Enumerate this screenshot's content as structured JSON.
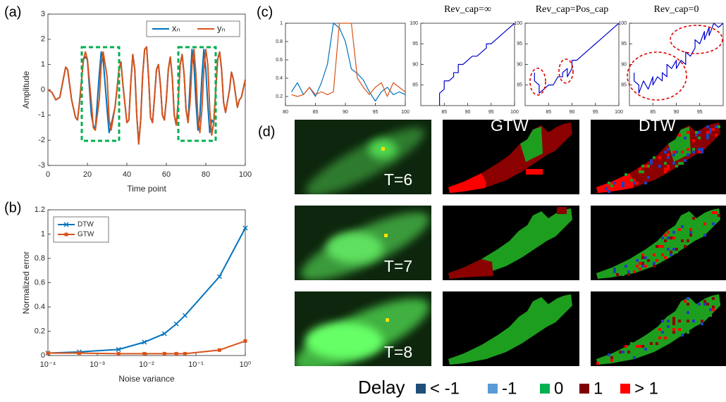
{
  "panel_labels": [
    "(a)",
    "(b)",
    "(c)",
    "(d)"
  ],
  "chart_data": [
    {
      "type": "line",
      "xlabel": "Time point",
      "ylabel": "Amplitude",
      "xlim": [
        0,
        100
      ],
      "xticks": [
        0,
        20,
        40,
        60,
        80,
        100
      ],
      "ylim": [
        -3,
        3
      ],
      "yticks": [
        -3,
        -2,
        -1,
        0,
        1,
        2,
        3
      ],
      "legend": "upper right",
      "x": [
        0,
        2,
        4,
        6,
        8,
        9,
        10,
        12,
        14,
        15,
        16,
        18,
        19,
        20,
        22,
        23,
        24,
        26,
        27,
        28,
        30,
        31,
        32,
        34,
        36,
        37,
        38,
        40,
        41,
        42,
        43,
        44,
        45,
        46,
        47,
        48,
        49,
        50,
        51,
        52,
        53,
        54,
        55,
        56,
        57,
        58,
        59,
        60,
        61,
        62,
        63,
        64,
        65,
        66,
        67,
        68,
        69,
        70,
        71,
        72,
        73,
        74,
        75,
        76,
        77,
        78,
        79,
        80,
        81,
        82,
        83,
        84,
        86,
        87,
        88,
        89,
        90,
        92,
        93,
        94,
        96,
        97,
        98,
        100
      ],
      "series": [
        {
          "name": "xₙ",
          "color": "#0072bd",
          "values": [
            0,
            -0.1,
            -0.4,
            -0.3,
            0.5,
            0.9,
            0.8,
            -0.4,
            -1.1,
            -1.2,
            -0.5,
            1.2,
            1.3,
            1.2,
            -1.0,
            -1.4,
            -1.6,
            0.6,
            1.5,
            1.2,
            -0.8,
            -1.7,
            -1.4,
            -0.7,
            0.8,
            1.1,
            0.2,
            -1.3,
            -1.2,
            0.3,
            1.4,
            0.8,
            -1.0,
            -2.15,
            -1.2,
            0.6,
            1.6,
            1.7,
            0.5,
            -1.1,
            -1.3,
            -0.3,
            0.8,
            1.0,
            0.2,
            -1.0,
            -1.2,
            -0.4,
            0.8,
            1.3,
            0.5,
            -1.0,
            -1.4,
            -0.5,
            1.0,
            1.4,
            0.6,
            -0.8,
            -1.3,
            0.2,
            1.6,
            1.0,
            -0.5,
            -1.6,
            -1.0,
            0.5,
            1.6,
            0.8,
            -0.6,
            -1.7,
            -1.2,
            -1.3,
            1.2,
            1.5,
            0.8,
            -0.5,
            -0.9,
            0.0,
            0.7,
            0.4,
            -0.7,
            -0.4,
            -0.3,
            0.4
          ]
        },
        {
          "name": "yₙ",
          "color": "#d95319",
          "values": [
            0,
            -0.1,
            -0.4,
            -0.3,
            0.5,
            0.9,
            0.8,
            -0.4,
            -1.1,
            -1.2,
            -0.5,
            1.2,
            1.5,
            1.2,
            -0.5,
            -1.5,
            -1.6,
            -0.4,
            1.0,
            1.5,
            0.5,
            -1.2,
            -1.6,
            -0.7,
            0.8,
            1.1,
            0.2,
            -1.3,
            -1.2,
            0.3,
            1.4,
            0.8,
            -1.0,
            -2.15,
            -1.2,
            0.6,
            1.6,
            1.7,
            0.5,
            -1.1,
            -1.3,
            -0.3,
            0.8,
            1.0,
            0.2,
            -1.0,
            -1.2,
            -0.4,
            0.8,
            1.3,
            0.5,
            -1.0,
            -1.4,
            -0.5,
            1.0,
            1.4,
            0.6,
            -0.8,
            -1.3,
            -0.5,
            1.0,
            1.6,
            0.6,
            -1.2,
            -1.7,
            -0.8,
            0.8,
            1.6,
            1.0,
            -0.8,
            -1.8,
            -1.3,
            1.2,
            1.5,
            0.8,
            -0.5,
            -0.9,
            0.0,
            0.7,
            0.4,
            -0.7,
            -0.4,
            -0.3,
            0.4
          ]
        }
      ]
    },
    {
      "type": "line",
      "xlabel": "Noise variance",
      "ylabel": "Normalized error",
      "log_x": true,
      "xlim": [
        0.0001,
        1
      ],
      "xticks": [
        {
          "value": 0.0001,
          "label": "10⁻⁴"
        },
        {
          "value": 0.001,
          "label": "10⁻³"
        },
        {
          "value": 0.01,
          "label": "10⁻²"
        },
        {
          "value": 0.1,
          "label": "10⁻¹"
        },
        {
          "value": 1,
          "label": "10⁰"
        }
      ],
      "ylim": [
        0,
        1.2
      ],
      "yticks": [
        0,
        0.2,
        0.4,
        0.6,
        0.8,
        1,
        1.2
      ],
      "legend": "upper left",
      "x": [
        0.0001,
        0.00043,
        0.0027,
        0.009,
        0.023,
        0.04,
        0.06,
        0.3,
        1
      ],
      "series": [
        {
          "name": "DTW",
          "color": "#0072bd",
          "marker": "x",
          "values": [
            0.02,
            0.03,
            0.05,
            0.11,
            0.18,
            0.26,
            0.33,
            0.65,
            1.05
          ]
        },
        {
          "name": "GTW",
          "color": "#d95319",
          "marker": "square",
          "values": [
            0.02,
            0.02,
            0.015,
            0.015,
            0.015,
            0.015,
            0.015,
            0.045,
            0.12
          ]
        }
      ]
    },
    {
      "type": "line",
      "xlim": [
        80,
        100
      ],
      "xticks": [
        80,
        85,
        90,
        95,
        100
      ],
      "ylim": [
        0.1,
        1
      ],
      "yticks": [
        0.2,
        0.4,
        0.6,
        0.8,
        1
      ],
      "x": [
        81,
        82,
        83,
        84,
        85,
        86,
        87,
        88,
        89,
        90,
        91,
        92,
        93,
        94,
        95,
        96,
        97,
        98,
        99,
        100
      ],
      "series": [
        {
          "color": "#0072bd",
          "values": [
            0.25,
            0.35,
            0.22,
            0.3,
            0.2,
            0.35,
            0.55,
            1.0,
            0.95,
            0.8,
            0.5,
            0.45,
            0.38,
            0.25,
            0.15,
            0.25,
            0.3,
            0.22,
            0.25,
            0.22
          ]
        },
        {
          "color": "#d95319",
          "values": [
            0.22,
            0.2,
            0.22,
            0.3,
            0.22,
            0.25,
            0.22,
            0.25,
            1.0,
            1.0,
            1.0,
            0.4,
            0.3,
            0.22,
            0.3,
            0.35,
            0.2,
            0.35,
            0.3,
            0.25
          ]
        }
      ]
    },
    {
      "type": "line",
      "title": "Rev_cap=∞",
      "xlim": [
        80,
        100
      ],
      "xticks": [
        85,
        90,
        95,
        100
      ],
      "ylim": [
        80,
        100
      ],
      "yticks": [
        85,
        90,
        95,
        100
      ],
      "x": [
        84,
        84,
        85,
        85,
        86,
        87,
        87,
        88,
        88,
        89,
        90,
        91,
        92,
        93,
        94,
        94,
        95,
        96,
        97,
        98,
        99,
        100
      ],
      "series": [
        {
          "color": "#0000cc",
          "values": [
            80,
            83,
            84,
            86,
            86,
            87,
            88,
            88,
            90,
            90,
            91,
            92,
            92,
            93,
            94,
            95,
            95,
            96,
            97,
            98,
            99,
            100
          ]
        }
      ]
    },
    {
      "type": "line",
      "title": "Rev_cap=Pos_cap",
      "xlim": [
        80,
        100
      ],
      "xticks": [
        85,
        90,
        95,
        100
      ],
      "ylim": [
        80,
        100
      ],
      "yticks": [
        85,
        90,
        95,
        100
      ],
      "x": [
        82,
        82,
        83,
        83,
        84,
        85,
        86,
        87,
        88,
        88,
        89,
        89,
        90,
        90,
        91,
        92,
        93,
        94,
        95,
        96,
        97,
        98,
        99,
        100
      ],
      "series": [
        {
          "color": "#0000cc",
          "values": [
            88,
            86,
            85,
            83,
            84,
            85,
            85,
            87,
            87,
            88,
            89,
            87,
            89,
            91,
            91,
            92,
            93,
            94,
            95,
            96,
            97,
            98,
            99,
            100
          ]
        }
      ]
    },
    {
      "type": "line",
      "title": "Rev_cap=0",
      "xlim": [
        80,
        100
      ],
      "xticks": [
        85,
        90,
        95
      ],
      "ylim": [
        80,
        100
      ],
      "yticks": [
        85,
        90,
        95,
        100
      ],
      "x": [
        81,
        81,
        82,
        82,
        83,
        84,
        85,
        85,
        86,
        87,
        87,
        88,
        88,
        89,
        90,
        90,
        91,
        92,
        92,
        93,
        94,
        94,
        95,
        96,
        96,
        97,
        97,
        98,
        99,
        100
      ],
      "series": [
        {
          "color": "#0000cc",
          "values": [
            88,
            86,
            85,
            83,
            86,
            84,
            87,
            85,
            87,
            86,
            88,
            87,
            90,
            89,
            91,
            89,
            91,
            90,
            93,
            92,
            94,
            96,
            95,
            98,
            96,
            99,
            97,
            100,
            99,
            100
          ]
        }
      ]
    }
  ],
  "panel_d": {
    "row_labels": [
      "T=6",
      "T=7",
      "T=8"
    ],
    "column_labels": [
      "GTW",
      "DTW"
    ],
    "legend": {
      "title": "Delay",
      "items": [
        {
          "label": "< -1",
          "color": "#1f4e79"
        },
        {
          "label": "-1",
          "color": "#5b9bd5"
        },
        {
          "label": "0",
          "color": "#00b050"
        },
        {
          "label": "1",
          "color": "#7f0000"
        },
        {
          "label": "> 1",
          "color": "#ff0000"
        }
      ]
    }
  }
}
